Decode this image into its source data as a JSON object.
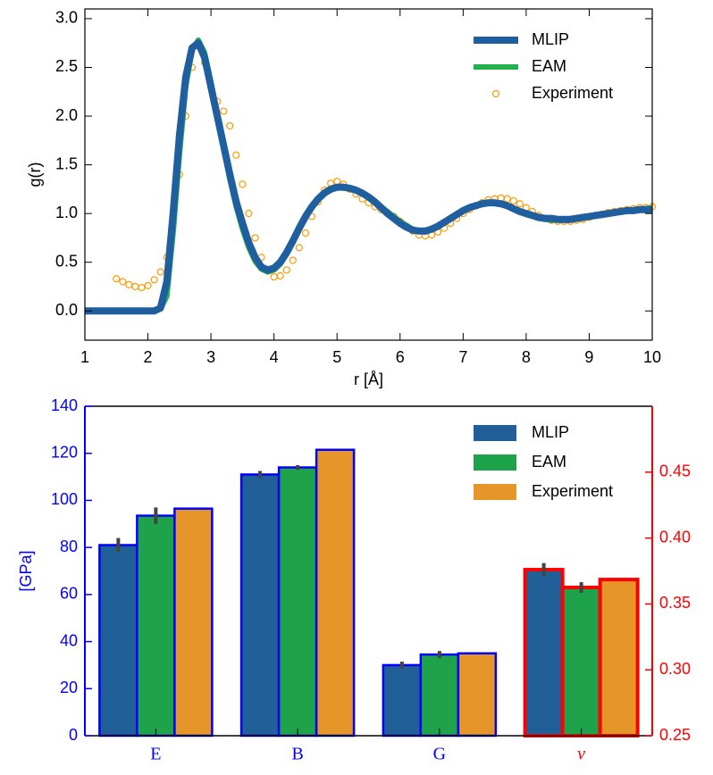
{
  "chart_data": [
    {
      "type": "line",
      "xlabel": "r [Å]",
      "ylabel": "g(r)",
      "x": [
        1.0,
        1.1,
        1.2,
        1.3,
        1.4,
        1.5,
        1.6,
        1.7,
        1.8,
        1.9,
        2.0,
        2.1,
        2.2,
        2.3,
        2.4,
        2.5,
        2.6,
        2.7,
        2.8,
        2.9,
        3.0,
        3.1,
        3.2,
        3.3,
        3.4,
        3.5,
        3.6,
        3.7,
        3.8,
        3.9,
        4.0,
        4.1,
        4.2,
        4.3,
        4.4,
        4.5,
        4.6,
        4.7,
        4.8,
        4.9,
        5.0,
        5.1,
        5.2,
        5.3,
        5.4,
        5.5,
        5.6,
        5.7,
        5.8,
        5.9,
        6.0,
        6.1,
        6.2,
        6.3,
        6.4,
        6.5,
        6.6,
        6.7,
        6.8,
        6.9,
        7.0,
        7.1,
        7.2,
        7.3,
        7.4,
        7.5,
        7.6,
        7.7,
        7.8,
        7.9,
        8.0,
        8.1,
        8.2,
        8.3,
        8.4,
        8.5,
        8.6,
        8.7,
        8.8,
        8.9,
        9.0,
        9.1,
        9.2,
        9.3,
        9.4,
        9.5,
        9.6,
        9.7,
        9.8,
        9.9,
        10.0
      ],
      "series": [
        {
          "name": "MLIP",
          "color": "#1f5fa0",
          "style": "line",
          "values": [
            0,
            0,
            0,
            0,
            0,
            0,
            0,
            0,
            0,
            0,
            0,
            0,
            0.03,
            0.3,
            1.0,
            1.8,
            2.4,
            2.7,
            2.75,
            2.6,
            2.3,
            2.0,
            1.7,
            1.4,
            1.12,
            0.9,
            0.7,
            0.55,
            0.45,
            0.42,
            0.44,
            0.5,
            0.6,
            0.72,
            0.85,
            0.97,
            1.07,
            1.15,
            1.21,
            1.25,
            1.27,
            1.27,
            1.26,
            1.24,
            1.21,
            1.17,
            1.12,
            1.06,
            1.0,
            0.95,
            0.9,
            0.86,
            0.83,
            0.82,
            0.82,
            0.84,
            0.87,
            0.91,
            0.95,
            0.99,
            1.03,
            1.06,
            1.08,
            1.1,
            1.11,
            1.11,
            1.1,
            1.08,
            1.05,
            1.02,
            1.0,
            0.98,
            0.96,
            0.95,
            0.95,
            0.94,
            0.94,
            0.94,
            0.95,
            0.96,
            0.97,
            0.98,
            0.99,
            1.0,
            1.01,
            1.02,
            1.03,
            1.03,
            1.04,
            1.04,
            1.04
          ]
        },
        {
          "name": "EAM",
          "color": "#22b14c",
          "style": "line",
          "values": [
            0,
            0,
            0,
            0,
            0,
            0,
            0,
            0,
            0,
            0,
            0,
            0,
            0.02,
            0.15,
            0.8,
            1.6,
            2.3,
            2.68,
            2.78,
            2.65,
            2.35,
            2.02,
            1.68,
            1.35,
            1.07,
            0.84,
            0.65,
            0.51,
            0.43,
            0.4,
            0.42,
            0.48,
            0.58,
            0.7,
            0.83,
            0.96,
            1.07,
            1.16,
            1.22,
            1.26,
            1.27,
            1.27,
            1.26,
            1.24,
            1.21,
            1.17,
            1.12,
            1.07,
            1.02,
            0.97,
            0.92,
            0.88,
            0.84,
            0.82,
            0.81,
            0.83,
            0.86,
            0.9,
            0.94,
            0.98,
            1.02,
            1.05,
            1.08,
            1.1,
            1.11,
            1.11,
            1.1,
            1.08,
            1.05,
            1.02,
            0.99,
            0.97,
            0.95,
            0.94,
            0.93,
            0.93,
            0.93,
            0.93,
            0.94,
            0.95,
            0.97,
            0.98,
            0.99,
            1.0,
            1.01,
            1.02,
            1.03,
            1.04,
            1.05,
            1.05,
            1.06
          ]
        },
        {
          "name": "Experiment",
          "color": "#ff9900",
          "style": "markers",
          "values": [
            null,
            null,
            null,
            null,
            null,
            0.33,
            0.3,
            0.27,
            0.25,
            0.24,
            0.26,
            0.32,
            0.4,
            0.55,
            0.9,
            1.4,
            2.0,
            2.5,
            2.72,
            2.55,
            2.3,
            2.15,
            2.05,
            1.9,
            1.6,
            1.3,
            1.0,
            0.75,
            0.55,
            0.42,
            0.35,
            0.36,
            0.42,
            0.52,
            0.65,
            0.8,
            0.97,
            1.12,
            1.24,
            1.31,
            1.33,
            1.3,
            1.25,
            1.2,
            1.15,
            1.11,
            1.07,
            1.04,
            1.01,
            0.97,
            0.92,
            0.87,
            0.82,
            0.78,
            0.77,
            0.78,
            0.81,
            0.85,
            0.9,
            0.95,
            1.0,
            1.04,
            1.08,
            1.11,
            1.14,
            1.15,
            1.16,
            1.15,
            1.13,
            1.1,
            1.06,
            1.02,
            0.98,
            0.95,
            0.93,
            0.92,
            0.92,
            0.92,
            0.93,
            0.94,
            0.96,
            0.98,
            0.99,
            1.01,
            1.02,
            1.03,
            1.04,
            1.05,
            1.06,
            1.06,
            1.07
          ]
        }
      ],
      "xlim": [
        1,
        10
      ],
      "xticks": [
        1,
        2,
        3,
        4,
        5,
        6,
        7,
        8,
        9,
        10
      ],
      "ylim": [
        -0.3,
        3.1
      ],
      "yticks": [
        {
          "value": 0,
          "label": "0.0"
        },
        0.5,
        {
          "value": 1,
          "label": "1.0"
        },
        1.5,
        {
          "value": 2,
          "label": "2.0"
        },
        2.5,
        {
          "value": 3,
          "label": "3.0"
        }
      ],
      "legend": "upper right"
    },
    {
      "type": "bar",
      "ylabel": "[GPa]",
      "categories": [
        "E",
        "B",
        "G",
        "ν"
      ],
      "category_axes": [
        "y",
        "y",
        "y",
        "y2"
      ],
      "edge_colors": [
        "#0000ff",
        "#0000ff",
        "#0000ff",
        "#ff0000"
      ],
      "series": [
        {
          "name": "MLIP",
          "color": "#215f98",
          "values": [
            81,
            111,
            30,
            0.376
          ],
          "errors": [
            3,
            1.5,
            1.5,
            0.005
          ]
        },
        {
          "name": "EAM",
          "color": "#1fa34a",
          "values": [
            93.5,
            114,
            34.5,
            0.3625
          ],
          "errors": [
            3.5,
            1,
            1.5,
            0.004
          ]
        },
        {
          "name": "Experiment",
          "color": "#e69528",
          "values": [
            96.5,
            121.5,
            35,
            0.3685
          ]
        }
      ],
      "ylim": [
        0,
        140
      ],
      "yticks": [
        0,
        20,
        40,
        60,
        80,
        100,
        120,
        140
      ],
      "y_color": "#0000ff",
      "y2lim": [
        0.25,
        0.5
      ],
      "y2ticks": [
        0.25,
        {
          "value": 0.3,
          "label": "0.30"
        },
        0.35,
        {
          "value": 0.4,
          "label": "0.40"
        },
        0.45
      ],
      "y2_color": "#ff0000",
      "legend": "upper right"
    }
  ]
}
